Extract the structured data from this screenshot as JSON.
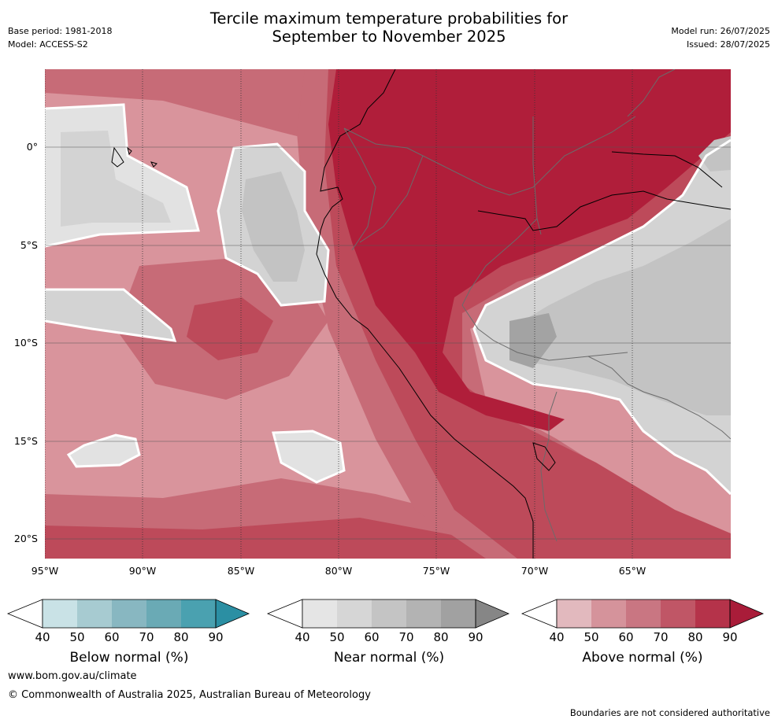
{
  "header": {
    "title_line1": "Tercile maximum temperature probabilities for",
    "title_line2": "September to November 2025",
    "base_period": "Base period: 1981-2018",
    "model": "Model: ACCESS-S2",
    "model_run": "Model run: 26/07/2025",
    "issued": "Issued: 28/07/2025"
  },
  "map": {
    "lat_labels": [
      "0°",
      "5°S",
      "10°S",
      "15°S",
      "20°S"
    ],
    "lon_labels": [
      "95°W",
      "90°W",
      "85°W",
      "80°W",
      "75°W",
      "70°W",
      "65°W"
    ],
    "colors": {
      "ocean_base": "#d9949c",
      "above_50": "#e0b8bd",
      "above_60": "#d4929a",
      "above_70": "#c76b77",
      "above_80": "#bd4a5a",
      "above_90": "#b01e3a",
      "near_40": "#e2e2e2",
      "near_50": "#d3d3d3",
      "near_60": "#c3c3c3",
      "near_70": "#b1b1b1",
      "near_80": "#a3a3a3"
    }
  },
  "colorbars": {
    "below": {
      "title": "Below normal (%)",
      "ticks": [
        "40",
        "50",
        "60",
        "70",
        "80",
        "90"
      ],
      "colors": [
        "#c9e2e6",
        "#a7cbd1",
        "#88b7c1",
        "#6aaab5",
        "#4aa1b0",
        "#2b8fa3"
      ]
    },
    "near": {
      "title": "Near normal (%)",
      "ticks": [
        "40",
        "50",
        "60",
        "70",
        "80",
        "90"
      ],
      "colors": [
        "#e5e5e5",
        "#d6d6d6",
        "#c4c4c4",
        "#b3b3b3",
        "#a1a1a1",
        "#868686"
      ]
    },
    "above": {
      "title": "Above normal (%)",
      "ticks": [
        "40",
        "50",
        "60",
        "70",
        "80",
        "90"
      ],
      "colors": [
        "#e2b9be",
        "#d5939b",
        "#c97682",
        "#c05666",
        "#b5334a",
        "#a91c39"
      ]
    }
  },
  "footer": {
    "website": "www.bom.gov.au/climate",
    "copyright": "© Commonwealth of Australia 2025, Australian Bureau of Meteorology",
    "disclaimer": "Boundaries are not considered authoritative"
  }
}
